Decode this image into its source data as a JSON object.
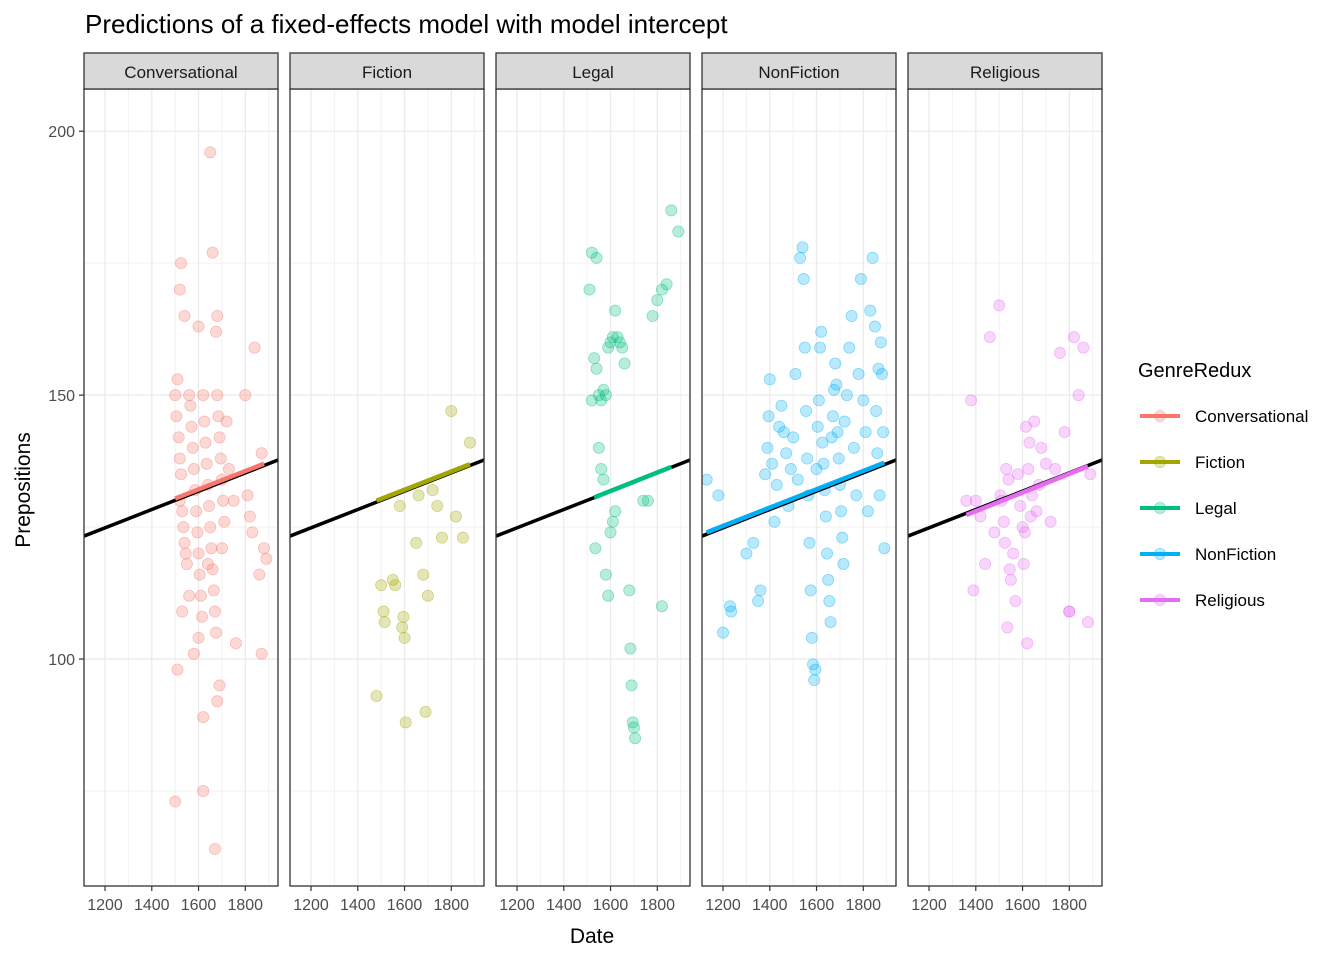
{
  "chart_data": {
    "type": "scatter",
    "title": "Predictions of a fixed-effects model with model intercept",
    "xlabel": "Date",
    "ylabel": "Prepositions",
    "xlim": [
      1110,
      1940
    ],
    "ylim": [
      57,
      208
    ],
    "x_ticks": [
      1200,
      1400,
      1600,
      1800
    ],
    "y_ticks": [
      100,
      150,
      200
    ],
    "grid": true,
    "facets": [
      "Conversational",
      "Fiction",
      "Legal",
      "NonFiction",
      "Religious"
    ],
    "legend": {
      "title": "GenreRedux",
      "position": "right",
      "entries": [
        "Conversational",
        "Fiction",
        "Legal",
        "NonFiction",
        "Religious"
      ]
    },
    "colors": {
      "Conversational": "#F8766D",
      "Fiction": "#A3A500",
      "Legal": "#00BF7D",
      "NonFiction": "#00B0F6",
      "Religious": "#E76BF3",
      "fixed_effect_line": "#000000"
    },
    "fixed_effect_line": {
      "x": [
        1110,
        1940
      ],
      "y": [
        123.3,
        137.7
      ]
    },
    "series": [
      {
        "name": "Conversational",
        "fit_line": {
          "x": [
            1500,
            1880
          ],
          "y": [
            130.4,
            137.0
          ]
        },
        "points": [
          [
            1500,
            150
          ],
          [
            1505,
            146
          ],
          [
            1510,
            153
          ],
          [
            1515,
            142
          ],
          [
            1520,
            138
          ],
          [
            1525,
            135
          ],
          [
            1520,
            130
          ],
          [
            1530,
            128
          ],
          [
            1535,
            125
          ],
          [
            1540,
            122
          ],
          [
            1545,
            120
          ],
          [
            1550,
            118
          ],
          [
            1560,
            150
          ],
          [
            1565,
            148
          ],
          [
            1570,
            144
          ],
          [
            1575,
            140
          ],
          [
            1580,
            136
          ],
          [
            1585,
            132
          ],
          [
            1590,
            128
          ],
          [
            1595,
            124
          ],
          [
            1600,
            120
          ],
          [
            1605,
            116
          ],
          [
            1610,
            112
          ],
          [
            1615,
            108
          ],
          [
            1620,
            150
          ],
          [
            1625,
            145
          ],
          [
            1630,
            141
          ],
          [
            1635,
            137
          ],
          [
            1640,
            133
          ],
          [
            1645,
            129
          ],
          [
            1650,
            125
          ],
          [
            1655,
            121
          ],
          [
            1660,
            117
          ],
          [
            1665,
            113
          ],
          [
            1670,
            109
          ],
          [
            1675,
            105
          ],
          [
            1680,
            150
          ],
          [
            1685,
            146
          ],
          [
            1690,
            142
          ],
          [
            1695,
            138
          ],
          [
            1700,
            134
          ],
          [
            1705,
            130
          ],
          [
            1710,
            126
          ],
          [
            1540,
            165
          ],
          [
            1520,
            170
          ],
          [
            1525,
            175
          ],
          [
            1600,
            163
          ],
          [
            1680,
            165
          ],
          [
            1675,
            162
          ],
          [
            1650,
            196
          ],
          [
            1660,
            177
          ],
          [
            1500,
            73
          ],
          [
            1620,
            75
          ],
          [
            1670,
            64
          ],
          [
            1620,
            89
          ],
          [
            1680,
            92
          ],
          [
            1690,
            95
          ],
          [
            1580,
            101
          ],
          [
            1600,
            104
          ],
          [
            1510,
            98
          ],
          [
            1530,
            109
          ],
          [
            1560,
            112
          ],
          [
            1640,
            118
          ],
          [
            1700,
            121
          ],
          [
            1720,
            145
          ],
          [
            1730,
            136
          ],
          [
            1750,
            130
          ],
          [
            1760,
            103
          ],
          [
            1800,
            150
          ],
          [
            1810,
            131
          ],
          [
            1820,
            127
          ],
          [
            1830,
            124
          ],
          [
            1840,
            159
          ],
          [
            1860,
            116
          ],
          [
            1870,
            139
          ],
          [
            1880,
            121
          ],
          [
            1890,
            119
          ],
          [
            1870,
            101
          ]
        ]
      },
      {
        "name": "Fiction",
        "fit_line": {
          "x": [
            1480,
            1880
          ],
          "y": [
            130.0,
            136.9
          ]
        },
        "points": [
          [
            1480,
            93
          ],
          [
            1500,
            114
          ],
          [
            1510,
            109
          ],
          [
            1515,
            107
          ],
          [
            1550,
            115
          ],
          [
            1560,
            114
          ],
          [
            1580,
            129
          ],
          [
            1590,
            106
          ],
          [
            1595,
            108
          ],
          [
            1600,
            104
          ],
          [
            1605,
            88
          ],
          [
            1650,
            122
          ],
          [
            1660,
            131
          ],
          [
            1680,
            116
          ],
          [
            1690,
            90
          ],
          [
            1700,
            112
          ],
          [
            1720,
            132
          ],
          [
            1740,
            129
          ],
          [
            1760,
            123
          ],
          [
            1800,
            147
          ],
          [
            1820,
            127
          ],
          [
            1850,
            123
          ],
          [
            1880,
            141
          ]
        ]
      },
      {
        "name": "Legal",
        "fit_line": {
          "x": [
            1530,
            1860
          ],
          "y": [
            130.6,
            136.4
          ]
        },
        "points": [
          [
            1510,
            170
          ],
          [
            1520,
            177
          ],
          [
            1540,
            176
          ],
          [
            1530,
            157
          ],
          [
            1540,
            155
          ],
          [
            1550,
            150
          ],
          [
            1560,
            149
          ],
          [
            1570,
            151
          ],
          [
            1580,
            150
          ],
          [
            1590,
            159
          ],
          [
            1600,
            160
          ],
          [
            1610,
            161
          ],
          [
            1620,
            166
          ],
          [
            1630,
            161
          ],
          [
            1640,
            160
          ],
          [
            1650,
            159
          ],
          [
            1660,
            156
          ],
          [
            1520,
            149
          ],
          [
            1535,
            121
          ],
          [
            1550,
            140
          ],
          [
            1560,
            136
          ],
          [
            1570,
            134
          ],
          [
            1580,
            116
          ],
          [
            1590,
            112
          ],
          [
            1600,
            124
          ],
          [
            1610,
            126
          ],
          [
            1620,
            128
          ],
          [
            1680,
            113
          ],
          [
            1685,
            102
          ],
          [
            1690,
            95
          ],
          [
            1695,
            88
          ],
          [
            1700,
            87
          ],
          [
            1705,
            85
          ],
          [
            1740,
            130
          ],
          [
            1760,
            130
          ],
          [
            1780,
            165
          ],
          [
            1800,
            168
          ],
          [
            1820,
            170
          ],
          [
            1840,
            171
          ],
          [
            1860,
            185
          ],
          [
            1890,
            181
          ],
          [
            1820,
            110
          ]
        ]
      },
      {
        "name": "NonFiction",
        "fit_line": {
          "x": [
            1130,
            1890
          ],
          "y": [
            124.0,
            137.2
          ]
        },
        "points": [
          [
            1130,
            134
          ],
          [
            1180,
            131
          ],
          [
            1200,
            105
          ],
          [
            1230,
            110
          ],
          [
            1235,
            109
          ],
          [
            1300,
            120
          ],
          [
            1330,
            122
          ],
          [
            1350,
            111
          ],
          [
            1360,
            113
          ],
          [
            1380,
            135
          ],
          [
            1390,
            140
          ],
          [
            1395,
            146
          ],
          [
            1400,
            153
          ],
          [
            1410,
            137
          ],
          [
            1420,
            126
          ],
          [
            1430,
            133
          ],
          [
            1440,
            144
          ],
          [
            1450,
            148
          ],
          [
            1460,
            143
          ],
          [
            1470,
            139
          ],
          [
            1480,
            129
          ],
          [
            1490,
            136
          ],
          [
            1500,
            142
          ],
          [
            1510,
            154
          ],
          [
            1520,
            134
          ],
          [
            1530,
            176
          ],
          [
            1540,
            178
          ],
          [
            1545,
            172
          ],
          [
            1550,
            159
          ],
          [
            1555,
            147
          ],
          [
            1560,
            138
          ],
          [
            1565,
            131
          ],
          [
            1570,
            122
          ],
          [
            1575,
            113
          ],
          [
            1580,
            104
          ],
          [
            1585,
            99
          ],
          [
            1590,
            96
          ],
          [
            1595,
            98
          ],
          [
            1600,
            136
          ],
          [
            1605,
            144
          ],
          [
            1610,
            149
          ],
          [
            1615,
            159
          ],
          [
            1620,
            162
          ],
          [
            1625,
            141
          ],
          [
            1630,
            137
          ],
          [
            1635,
            132
          ],
          [
            1640,
            127
          ],
          [
            1645,
            120
          ],
          [
            1650,
            115
          ],
          [
            1655,
            111
          ],
          [
            1660,
            107
          ],
          [
            1665,
            142
          ],
          [
            1670,
            146
          ],
          [
            1675,
            151
          ],
          [
            1680,
            156
          ],
          [
            1685,
            152
          ],
          [
            1690,
            143
          ],
          [
            1695,
            138
          ],
          [
            1700,
            133
          ],
          [
            1705,
            128
          ],
          [
            1710,
            123
          ],
          [
            1715,
            118
          ],
          [
            1720,
            145
          ],
          [
            1730,
            150
          ],
          [
            1740,
            159
          ],
          [
            1750,
            165
          ],
          [
            1760,
            140
          ],
          [
            1770,
            131
          ],
          [
            1780,
            154
          ],
          [
            1790,
            172
          ],
          [
            1800,
            149
          ],
          [
            1810,
            143
          ],
          [
            1820,
            128
          ],
          [
            1830,
            166
          ],
          [
            1840,
            176
          ],
          [
            1850,
            163
          ],
          [
            1860,
            139
          ],
          [
            1870,
            131
          ],
          [
            1880,
            154
          ],
          [
            1890,
            121
          ],
          [
            1885,
            143
          ],
          [
            1875,
            160
          ],
          [
            1865,
            155
          ],
          [
            1855,
            147
          ]
        ]
      },
      {
        "name": "Religious",
        "fit_line": {
          "x": [
            1360,
            1880
          ],
          "y": [
            127.3,
            136.5
          ]
        },
        "points": [
          [
            1360,
            130
          ],
          [
            1380,
            149
          ],
          [
            1390,
            113
          ],
          [
            1400,
            130
          ],
          [
            1420,
            127
          ],
          [
            1440,
            118
          ],
          [
            1460,
            161
          ],
          [
            1480,
            124
          ],
          [
            1500,
            167
          ],
          [
            1505,
            131
          ],
          [
            1510,
            130
          ],
          [
            1520,
            126
          ],
          [
            1525,
            122
          ],
          [
            1530,
            136
          ],
          [
            1535,
            106
          ],
          [
            1540,
            134
          ],
          [
            1545,
            117
          ],
          [
            1550,
            115
          ],
          [
            1560,
            120
          ],
          [
            1570,
            111
          ],
          [
            1580,
            135
          ],
          [
            1590,
            129
          ],
          [
            1600,
            125
          ],
          [
            1605,
            118
          ],
          [
            1610,
            124
          ],
          [
            1615,
            144
          ],
          [
            1620,
            103
          ],
          [
            1625,
            136
          ],
          [
            1630,
            141
          ],
          [
            1635,
            127
          ],
          [
            1640,
            131
          ],
          [
            1650,
            145
          ],
          [
            1660,
            128
          ],
          [
            1670,
            133
          ],
          [
            1680,
            140
          ],
          [
            1700,
            137
          ],
          [
            1720,
            126
          ],
          [
            1740,
            136
          ],
          [
            1760,
            158
          ],
          [
            1780,
            143
          ],
          [
            1800,
            109
          ],
          [
            1820,
            161
          ],
          [
            1840,
            150
          ],
          [
            1860,
            159
          ],
          [
            1880,
            107
          ],
          [
            1890,
            135
          ],
          [
            1800,
            109
          ]
        ]
      }
    ]
  }
}
